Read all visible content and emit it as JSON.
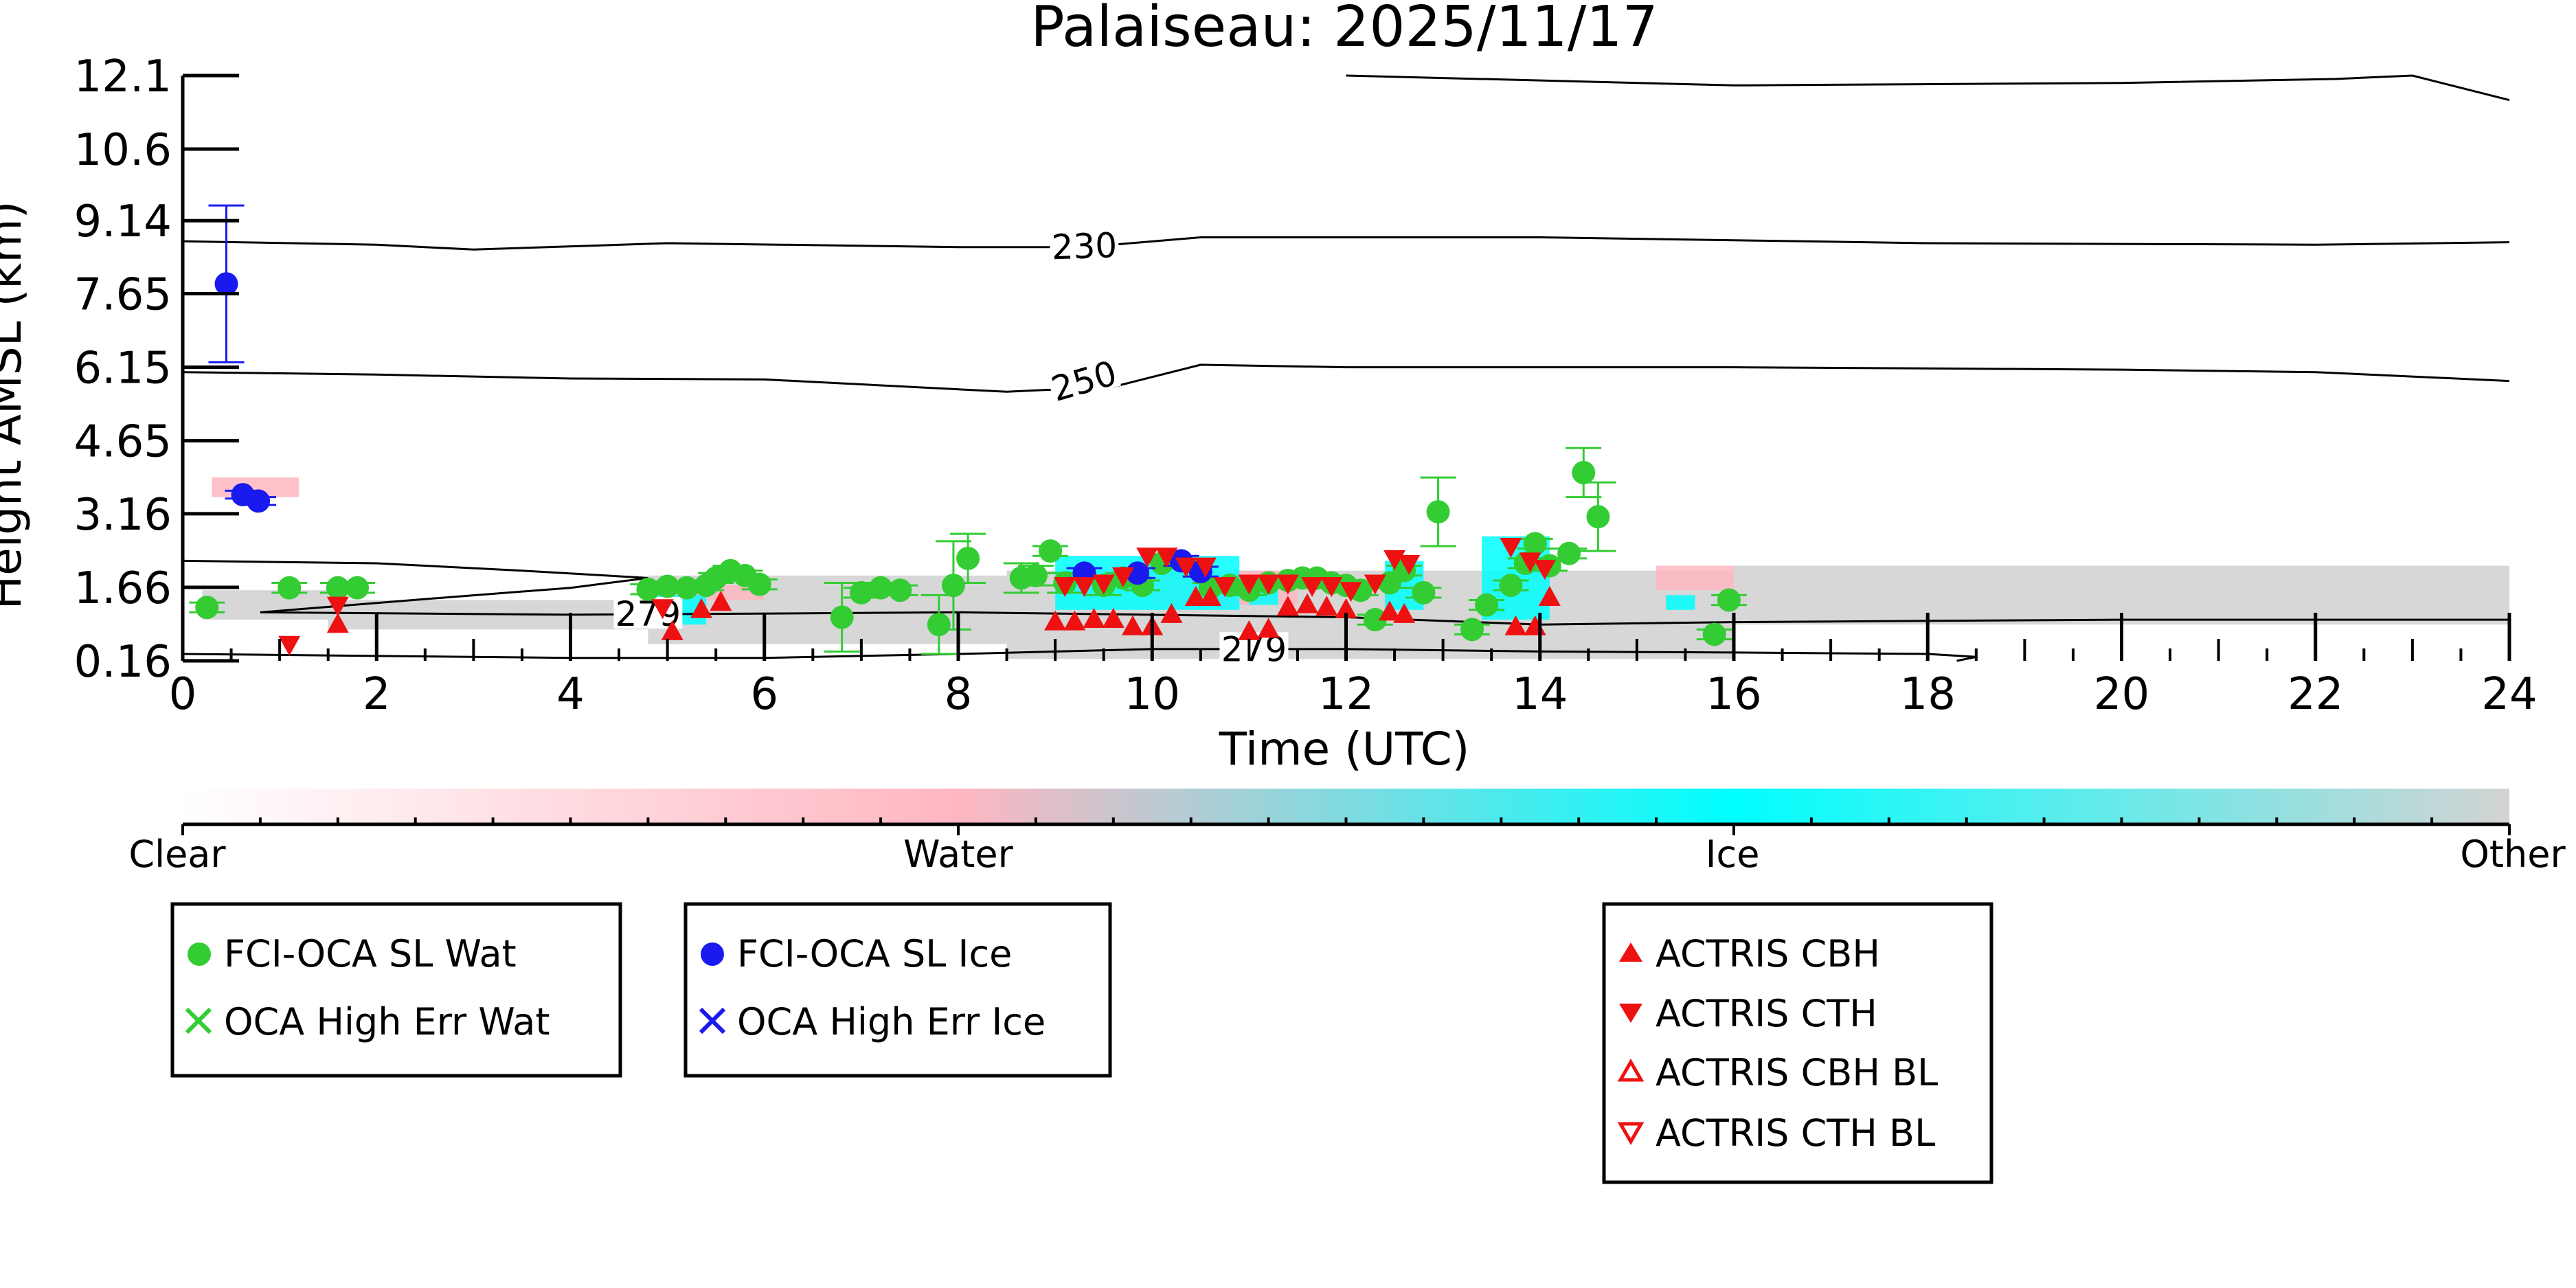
{
  "chart_data": {
    "type": "scatter",
    "title": "Palaiseau: 2025/11/17",
    "xlabel": "Time (UTC)",
    "ylabel": "Height AMSL (km)",
    "xlim": [
      0,
      24
    ],
    "ylim": [
      0.16,
      12.1
    ],
    "x_ticks": [
      "0",
      "2",
      "4",
      "6",
      "8",
      "10",
      "12",
      "14",
      "16",
      "18",
      "20",
      "22",
      "24"
    ],
    "y_ticks": [
      "0.16",
      "1.66",
      "3.16",
      "4.65",
      "6.15",
      "7.65",
      "9.14",
      "10.6",
      "12.1"
    ],
    "colorbar": {
      "labels": [
        "Clear",
        "Water",
        "Ice",
        "Other"
      ],
      "colors": [
        "#ffffff",
        "#ffb6c1",
        "#00ffff",
        "#d3d3d3"
      ]
    },
    "contours": [
      {
        "label": "230",
        "points": [
          [
            0,
            8.72
          ],
          [
            2,
            8.65
          ],
          [
            3,
            8.55
          ],
          [
            5,
            8.68
          ],
          [
            8,
            8.6
          ],
          [
            9.3,
            8.6
          ],
          [
            10.5,
            8.8
          ],
          [
            14,
            8.8
          ],
          [
            18,
            8.68
          ],
          [
            22,
            8.65
          ],
          [
            24,
            8.7
          ]
        ]
      },
      {
        "label": "250",
        "points": [
          [
            0,
            6.05
          ],
          [
            2,
            6.0
          ],
          [
            4,
            5.92
          ],
          [
            6,
            5.9
          ],
          [
            8.5,
            5.65
          ],
          [
            9.6,
            5.75
          ],
          [
            10.5,
            6.2
          ],
          [
            12,
            6.15
          ],
          [
            16,
            6.15
          ],
          [
            20,
            6.1
          ],
          [
            22,
            6.05
          ],
          [
            24,
            5.87
          ]
        ]
      },
      {
        "label": "",
        "points": [
          [
            12,
            12.1
          ],
          [
            16,
            11.9
          ],
          [
            20,
            11.95
          ],
          [
            22.2,
            12.03
          ],
          [
            23,
            12.1
          ],
          [
            24,
            11.6
          ]
        ]
      },
      {
        "label": "279",
        "points": [
          [
            0,
            2.2
          ],
          [
            2,
            2.15
          ],
          [
            3.5,
            2.0
          ],
          [
            4.8,
            1.85
          ],
          [
            4,
            1.65
          ],
          [
            2.5,
            1.42
          ],
          [
            0.8,
            1.15
          ],
          [
            4,
            1.1
          ],
          [
            8,
            1.15
          ],
          [
            12,
            1.05
          ],
          [
            14,
            0.9
          ],
          [
            16,
            0.95
          ],
          [
            20,
            1.0
          ],
          [
            24,
            1.0
          ]
        ]
      },
      {
        "label": "279",
        "points": [
          [
            0,
            0.3
          ],
          [
            4,
            0.22
          ],
          [
            6,
            0.22
          ],
          [
            8,
            0.3
          ],
          [
            10,
            0.4
          ],
          [
            12,
            0.4
          ],
          [
            14,
            0.35
          ],
          [
            16,
            0.33
          ],
          [
            18,
            0.3
          ],
          [
            18.5,
            0.24
          ],
          [
            18.3,
            0.16
          ]
        ]
      }
    ],
    "series": [
      {
        "name": "FCI-OCA SL Wat",
        "color": "#33cc33",
        "marker": "circle",
        "points": [
          [
            0.25,
            1.25,
            0.1
          ],
          [
            1.1,
            1.65,
            0.1
          ],
          [
            1.6,
            1.65,
            0.1
          ],
          [
            1.8,
            1.65,
            0.1
          ],
          [
            4.8,
            1.62,
            0.1
          ],
          [
            5.0,
            1.68,
            0.1
          ],
          [
            5.2,
            1.65,
            0.1
          ],
          [
            5.4,
            1.7,
            0.1
          ],
          [
            5.5,
            1.85,
            0.1
          ],
          [
            5.65,
            2.0,
            0.1
          ],
          [
            5.8,
            1.9,
            0.1
          ],
          [
            5.95,
            1.72,
            0.1
          ],
          [
            6.8,
            1.05,
            0.7
          ],
          [
            7.0,
            1.55,
            0.1
          ],
          [
            7.2,
            1.65,
            0.1
          ],
          [
            7.4,
            1.6,
            0.1
          ],
          [
            7.8,
            0.9,
            0.6
          ],
          [
            7.95,
            1.7,
            0.9
          ],
          [
            8.1,
            2.25,
            0.5
          ],
          [
            8.65,
            1.85,
            0.3
          ],
          [
            8.8,
            1.9,
            0.2
          ],
          [
            8.95,
            2.4,
            0.1
          ],
          [
            9.1,
            1.75,
            0.2
          ],
          [
            9.5,
            1.7,
            0.2
          ],
          [
            9.7,
            1.85,
            0.1
          ],
          [
            9.9,
            1.7,
            0.1
          ],
          [
            10.1,
            2.15,
            0.1
          ],
          [
            10.6,
            1.65,
            0.1
          ],
          [
            10.8,
            1.7,
            0.1
          ],
          [
            11.0,
            1.6,
            0.1
          ],
          [
            11.2,
            1.75,
            0.1
          ],
          [
            11.4,
            1.8,
            0.1
          ],
          [
            11.55,
            1.85,
            0.1
          ],
          [
            11.7,
            1.85,
            0.1
          ],
          [
            11.85,
            1.75,
            0.1
          ],
          [
            12.0,
            1.7,
            0.1
          ],
          [
            12.15,
            1.6,
            0.1
          ],
          [
            12.3,
            1.0,
            0.1
          ],
          [
            12.45,
            1.75,
            0.1
          ],
          [
            12.6,
            2.0,
            0.1
          ],
          [
            12.8,
            1.55,
            0.1
          ],
          [
            12.95,
            3.2,
            0.7
          ],
          [
            13.3,
            0.8,
            0.1
          ],
          [
            13.45,
            1.3,
            0.1
          ],
          [
            13.7,
            1.7,
            0.1
          ],
          [
            13.85,
            2.15,
            0.1
          ],
          [
            13.95,
            2.55,
            0.1
          ],
          [
            14.1,
            2.1,
            0.1
          ],
          [
            14.3,
            2.35,
            0.1
          ],
          [
            14.45,
            4.0,
            0.5
          ],
          [
            14.6,
            3.1,
            0.7
          ],
          [
            15.8,
            0.7,
            0.1
          ],
          [
            15.95,
            1.4,
            0.1
          ]
        ]
      },
      {
        "name": "FCI-OCA SL Ice",
        "color": "#1a1aee",
        "marker": "circle",
        "points": [
          [
            0.45,
            7.85,
            1.6
          ],
          [
            0.62,
            3.55,
            0.08
          ],
          [
            0.78,
            3.42,
            0.08
          ],
          [
            9.3,
            1.95,
            0.1
          ],
          [
            9.85,
            1.95,
            0.1
          ],
          [
            10.3,
            2.2,
            0.1
          ],
          [
            10.5,
            1.98,
            0.1
          ]
        ]
      },
      {
        "name": "ACTRIS CBH",
        "color": "#ee1111",
        "marker": "triangle-up",
        "points": [
          [
            1.6,
            0.9
          ],
          [
            5.05,
            0.75
          ],
          [
            5.35,
            1.2
          ],
          [
            5.55,
            1.35
          ],
          [
            9.0,
            0.95
          ],
          [
            9.2,
            0.95
          ],
          [
            9.4,
            1.0
          ],
          [
            9.6,
            1.0
          ],
          [
            9.8,
            0.85
          ],
          [
            10.0,
            0.85
          ],
          [
            10.2,
            1.1
          ],
          [
            10.45,
            1.45
          ],
          [
            10.6,
            1.45
          ],
          [
            11.0,
            0.75
          ],
          [
            11.2,
            0.8
          ],
          [
            11.4,
            1.25
          ],
          [
            11.6,
            1.3
          ],
          [
            11.8,
            1.25
          ],
          [
            12.0,
            1.2
          ],
          [
            12.45,
            1.15
          ],
          [
            12.6,
            1.1
          ],
          [
            13.75,
            0.85
          ],
          [
            13.95,
            0.85
          ],
          [
            14.1,
            1.45
          ]
        ]
      },
      {
        "name": "ACTRIS CTH",
        "color": "#ee1111",
        "marker": "triangle-down",
        "points": [
          [
            1.1,
            0.5
          ],
          [
            1.6,
            1.3
          ],
          [
            4.95,
            1.25
          ],
          [
            9.1,
            1.7
          ],
          [
            9.3,
            1.7
          ],
          [
            9.5,
            1.75
          ],
          [
            9.7,
            1.9
          ],
          [
            9.95,
            2.3
          ],
          [
            10.15,
            2.3
          ],
          [
            10.35,
            2.1
          ],
          [
            10.55,
            2.1
          ],
          [
            10.75,
            1.7
          ],
          [
            11.0,
            1.75
          ],
          [
            11.2,
            1.75
          ],
          [
            11.4,
            1.75
          ],
          [
            11.65,
            1.7
          ],
          [
            11.85,
            1.7
          ],
          [
            12.05,
            1.6
          ],
          [
            12.3,
            1.75
          ],
          [
            12.5,
            2.25
          ],
          [
            12.65,
            2.15
          ],
          [
            13.7,
            2.5
          ],
          [
            13.9,
            2.2
          ],
          [
            14.05,
            2.05
          ]
        ]
      },
      {
        "name": "OCA High Err Wat",
        "color": "#33cc33",
        "marker": "x",
        "points": []
      },
      {
        "name": "OCA High Err Ice",
        "color": "#1a1aee",
        "marker": "x",
        "points": []
      },
      {
        "name": "ACTRIS CBH BL",
        "color": "#ee1111",
        "marker": "triangle-up-open",
        "points": []
      },
      {
        "name": "ACTRIS CTH BL",
        "color": "#ee1111",
        "marker": "triangle-down-open",
        "points": []
      }
    ],
    "cloud_mask": [
      {
        "category": "Other",
        "x0": 0.2,
        "x1": 1.5,
        "y0": 1.0,
        "y1": 1.6
      },
      {
        "category": "Other",
        "x0": 1.5,
        "x1": 4.8,
        "y0": 0.8,
        "y1": 1.4
      },
      {
        "category": "Other",
        "x0": 4.8,
        "x1": 8.5,
        "y0": 0.5,
        "y1": 1.9
      },
      {
        "category": "Other",
        "x0": 8.5,
        "x1": 16.0,
        "y0": 0.2,
        "y1": 2.0
      },
      {
        "category": "Other",
        "x0": 16.0,
        "x1": 24.0,
        "y0": 0.9,
        "y1": 2.1
      },
      {
        "category": "Water",
        "x0": 0.3,
        "x1": 1.2,
        "y0": 3.5,
        "y1": 3.9
      },
      {
        "category": "Water",
        "x0": 4.9,
        "x1": 6.0,
        "y0": 1.4,
        "y1": 1.7
      },
      {
        "category": "Water",
        "x0": 10.0,
        "x1": 11.5,
        "y0": 1.3,
        "y1": 2.0
      },
      {
        "category": "Water",
        "x0": 15.2,
        "x1": 16.0,
        "y0": 1.6,
        "y1": 2.1
      },
      {
        "category": "Ice",
        "x0": 4.9,
        "x1": 5.4,
        "y0": 0.9,
        "y1": 1.5
      },
      {
        "category": "Ice",
        "x0": 9.0,
        "x1": 10.9,
        "y0": 1.2,
        "y1": 2.3
      },
      {
        "category": "Ice",
        "x0": 11.0,
        "x1": 11.3,
        "y0": 1.3,
        "y1": 1.8
      },
      {
        "category": "Ice",
        "x0": 12.4,
        "x1": 12.8,
        "y0": 1.2,
        "y1": 2.2
      },
      {
        "category": "Ice",
        "x0": 13.4,
        "x1": 14.1,
        "y0": 1.0,
        "y1": 2.7
      },
      {
        "category": "Ice",
        "x0": 15.3,
        "x1": 15.6,
        "y0": 1.2,
        "y1": 1.5
      }
    ]
  }
}
